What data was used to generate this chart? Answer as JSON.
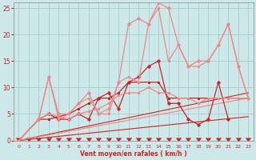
{
  "bg_color": "#cce8e8",
  "grid_color": "#aacccc",
  "xlabel": "Vent moyen/en rafales ( km/h )",
  "xlim": [
    -0.5,
    23.5
  ],
  "ylim": [
    0,
    26
  ],
  "xticks": [
    0,
    1,
    2,
    3,
    4,
    5,
    6,
    7,
    8,
    9,
    10,
    11,
    12,
    13,
    14,
    15,
    16,
    17,
    18,
    19,
    20,
    21,
    22,
    23
  ],
  "yticks": [
    0,
    5,
    10,
    15,
    20,
    25
  ],
  "lines": [
    {
      "x": [
        0,
        23
      ],
      "y": [
        0,
        9
      ],
      "color": "#cc2222",
      "lw": 0.8,
      "marker": null
    },
    {
      "x": [
        0,
        23
      ],
      "y": [
        0,
        4.5
      ],
      "color": "#cc2222",
      "lw": 0.8,
      "marker": null
    },
    {
      "x": [
        0,
        23
      ],
      "y": [
        0,
        8
      ],
      "color": "#ee8888",
      "lw": 0.8,
      "marker": null
    },
    {
      "x": [
        0,
        2,
        3,
        4,
        5,
        6,
        7,
        8,
        9,
        10,
        11,
        12,
        13,
        14,
        15,
        16,
        17,
        18,
        19,
        20,
        21,
        22,
        23
      ],
      "y": [
        0,
        4,
        4,
        4.5,
        5,
        6,
        7,
        8,
        8,
        9,
        11,
        11,
        11,
        11,
        8,
        8,
        8,
        8,
        8,
        8,
        8,
        8,
        8
      ],
      "color": "#cc2222",
      "lw": 0.9,
      "marker": "s",
      "ms": 2.0
    },
    {
      "x": [
        0,
        2,
        3,
        4,
        5,
        6,
        7,
        8,
        9,
        10,
        11,
        12,
        13,
        14,
        15,
        16,
        17,
        18,
        19,
        20,
        21
      ],
      "y": [
        0,
        4,
        5,
        4,
        4,
        5,
        4,
        8,
        9,
        6,
        11,
        12,
        14,
        15,
        7,
        7,
        4,
        3,
        4,
        11,
        4
      ],
      "color": "#cc2222",
      "lw": 0.9,
      "marker": "P",
      "ms": 2.5
    },
    {
      "x": [
        0,
        2,
        3,
        4,
        5,
        6,
        7,
        8,
        9,
        10,
        11,
        12,
        13,
        14,
        15,
        16,
        17,
        18,
        19,
        20,
        21,
        22,
        23
      ],
      "y": [
        0,
        4,
        5,
        4.5,
        4,
        5,
        5.5,
        6,
        7,
        8.5,
        9,
        9,
        10,
        9,
        9,
        8,
        8,
        7,
        8,
        8,
        8,
        8,
        8
      ],
      "color": "#ee8888",
      "lw": 0.9,
      "marker": "s",
      "ms": 2.0
    },
    {
      "x": [
        0,
        2,
        3,
        4,
        5,
        6,
        7,
        8,
        9,
        10,
        11,
        12,
        13,
        14,
        15,
        16,
        17,
        18,
        19,
        20,
        21,
        22,
        23
      ],
      "y": [
        0,
        4,
        12,
        4,
        5,
        7,
        8,
        5,
        5,
        11,
        12,
        11,
        22,
        25,
        15,
        18,
        14,
        14,
        15,
        18,
        22,
        14,
        8
      ],
      "color": "#ee8888",
      "lw": 0.9,
      "marker": "s",
      "ms": 2.0
    },
    {
      "x": [
        0,
        2,
        3,
        4,
        5,
        6,
        7,
        8,
        9,
        10,
        11,
        12,
        13,
        14,
        15,
        16,
        17,
        18,
        19,
        20,
        21,
        22,
        23
      ],
      "y": [
        0,
        4,
        12,
        5,
        5,
        7,
        9,
        5,
        6,
        11,
        22,
        23,
        22,
        26,
        25,
        18,
        14,
        15,
        15,
        18,
        22,
        14,
        8
      ],
      "color": "#ee8888",
      "lw": 0.9,
      "marker": "P",
      "ms": 2.5
    }
  ]
}
